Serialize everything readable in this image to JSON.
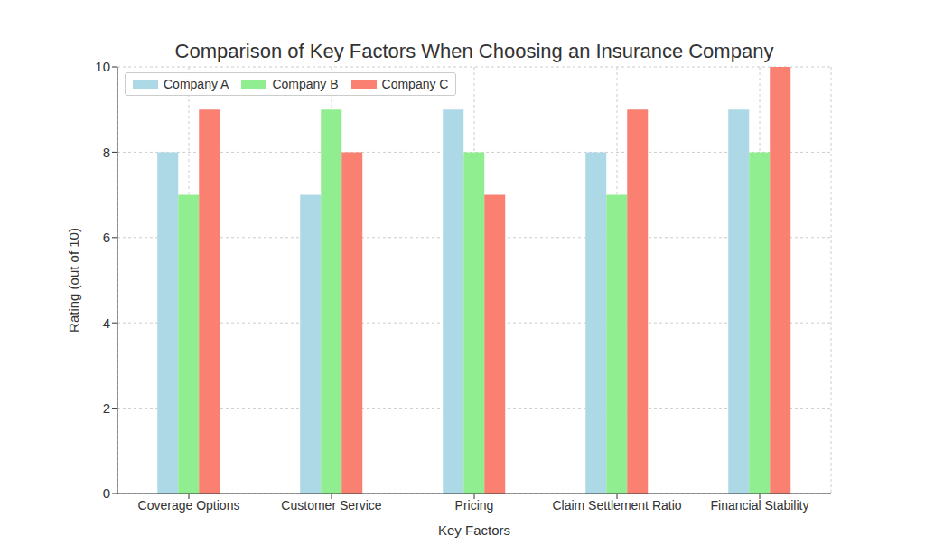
{
  "chart_data": {
    "type": "bar",
    "title": "Comparison of Key Factors When Choosing an Insurance Company",
    "xlabel": "Key Factors",
    "ylabel": "Rating (out of 10)",
    "categories": [
      "Coverage Options",
      "Customer Service",
      "Pricing",
      "Claim Settlement Ratio",
      "Financial Stability"
    ],
    "series": [
      {
        "name": "Company A",
        "color": "#add8e6",
        "values": [
          8,
          7,
          9,
          8,
          9
        ]
      },
      {
        "name": "Company B",
        "color": "#90ee90",
        "values": [
          7,
          9,
          8,
          7,
          8
        ]
      },
      {
        "name": "Company C",
        "color": "#fa8072",
        "values": [
          9,
          8,
          7,
          9,
          10
        ]
      }
    ],
    "ylim": [
      0,
      10
    ],
    "yticks": [
      0,
      2,
      4,
      6,
      8,
      10
    ],
    "grid": true,
    "legend": "upper left"
  }
}
